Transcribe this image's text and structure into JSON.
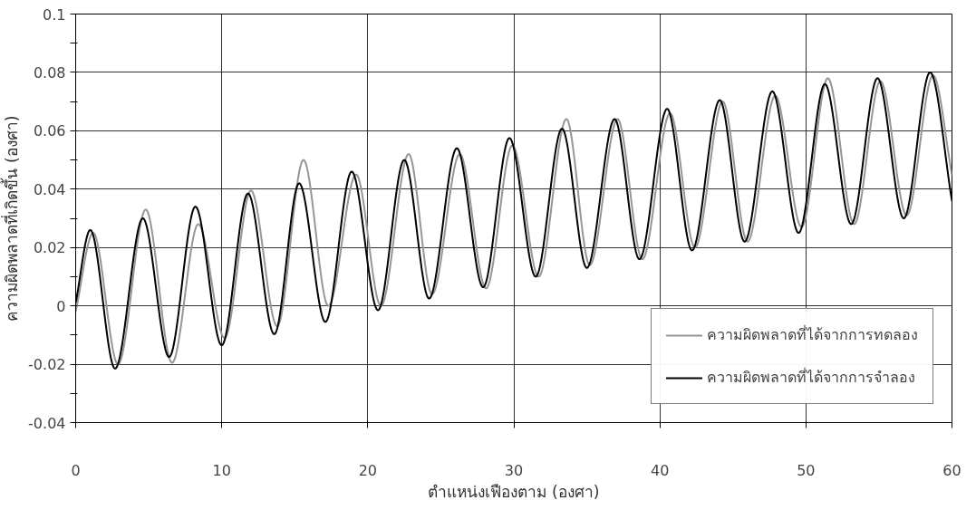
{
  "chart_data": {
    "type": "line",
    "xlabel": "ตำแหน่งเฟืองตาม (องศา)",
    "ylabel": "ความผิดพลาดที่เกิดขึ้น (องศา)",
    "series": [
      {
        "name": "ความผิดพลาดที่ได้จากการทดลอง",
        "color": "#969696",
        "x": [
          0,
          1.2,
          2.9,
          4.8,
          6.6,
          8.4,
          10.2,
          12.0,
          13.8,
          15.6,
          17.3,
          19.2,
          20.9,
          22.8,
          24.4,
          26.3,
          28.1,
          29.9,
          31.7,
          33.6,
          35.2,
          37.1,
          38.8,
          40.7,
          42.4,
          44.3,
          46.0,
          47.9,
          49.7,
          51.5,
          53.3,
          55.1,
          56.9,
          58.7,
          60
        ],
        "values": [
          -0.002,
          0.025,
          -0.02,
          0.033,
          -0.0195,
          0.028,
          -0.011,
          0.0395,
          -0.007,
          0.05,
          0.0,
          0.045,
          0.0,
          0.052,
          0.004,
          0.052,
          0.006,
          0.055,
          0.01,
          0.064,
          0.014,
          0.064,
          0.016,
          0.066,
          0.02,
          0.07,
          0.022,
          0.072,
          0.027,
          0.078,
          0.028,
          0.077,
          0.031,
          0.079,
          0.045
        ]
      },
      {
        "name": "ความผิดพลาดที่ได้จากการจำลอง",
        "color": "#000000",
        "x": [
          0,
          1.0,
          2.7,
          4.6,
          6.4,
          8.2,
          10.0,
          11.8,
          13.6,
          15.3,
          17.1,
          18.9,
          20.7,
          22.5,
          24.2,
          26.1,
          27.9,
          29.7,
          31.5,
          33.3,
          35.0,
          36.9,
          38.6,
          40.5,
          42.2,
          44.1,
          45.8,
          47.7,
          49.5,
          51.3,
          53.1,
          54.9,
          56.7,
          58.5,
          60
        ],
        "values": [
          0.001,
          0.026,
          -0.0215,
          0.03,
          -0.0175,
          0.034,
          -0.0135,
          0.0385,
          -0.0097,
          0.042,
          -0.0055,
          0.046,
          -0.0015,
          0.05,
          0.0025,
          0.054,
          0.0064,
          0.0575,
          0.01,
          0.0607,
          0.013,
          0.064,
          0.016,
          0.0675,
          0.019,
          0.0705,
          0.022,
          0.0735,
          0.025,
          0.076,
          0.028,
          0.078,
          0.03,
          0.08,
          0.036
        ]
      }
    ],
    "xlim": [
      0,
      60
    ],
    "xticks": [
      0,
      10,
      20,
      30,
      40,
      50,
      60
    ],
    "ylim": [
      -0.04,
      0.1
    ],
    "yticks": [
      -0.04,
      {
        "value": -0.03,
        "label": null
      },
      -0.02,
      {
        "value": -0.01,
        "label": null
      },
      0,
      {
        "value": 0.01,
        "label": null
      },
      0.02,
      {
        "value": 0.03,
        "label": null
      },
      0.04,
      {
        "value": 0.05,
        "label": null
      },
      0.06,
      {
        "value": 0.07,
        "label": null
      },
      0.08,
      {
        "value": 0.09,
        "label": null
      },
      0.1
    ],
    "grid": true,
    "legend": "bottom right",
    "line_style": "solid",
    "marker": "none"
  }
}
